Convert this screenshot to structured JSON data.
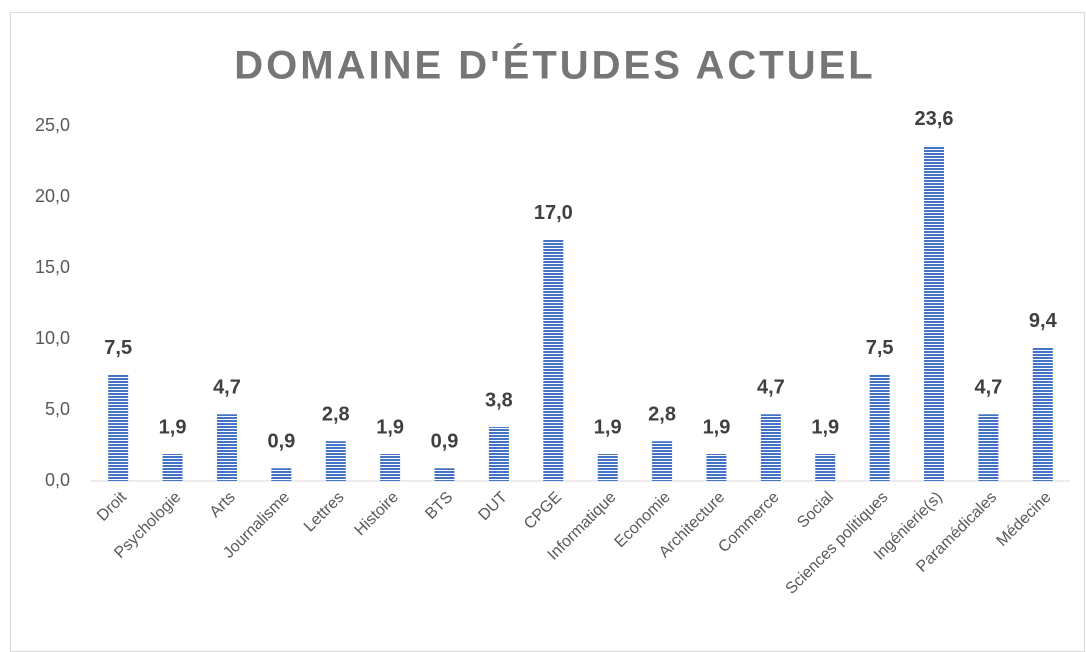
{
  "chart_data": {
    "type": "bar",
    "title": "DOMAINE D'ÉTUDES ACTUEL",
    "categories": [
      "Droit",
      "Psychologie",
      "Arts",
      "Journalisme",
      "Lettres",
      "Histoire",
      "BTS",
      "DUT",
      "CPGE",
      "Informatique",
      "Economie",
      "Architecture",
      "Commerce",
      "Social",
      "Sciences politiques",
      "Ingénierie(s)",
      "Paramédicales",
      "Médecine"
    ],
    "values": [
      7.5,
      1.9,
      4.7,
      0.9,
      2.8,
      1.9,
      0.9,
      3.8,
      17.0,
      1.9,
      2.8,
      1.9,
      4.7,
      1.9,
      7.5,
      23.6,
      4.7,
      9.4
    ],
    "value_labels": [
      "7,5",
      "1,9",
      "4,7",
      "0,9",
      "2,8",
      "1,9",
      "0,9",
      "3,8",
      "17,0",
      "1,9",
      "2,8",
      "1,9",
      "4,7",
      "1,9",
      "7,5",
      "23,6",
      "4,7",
      "9,4"
    ],
    "color": "#4472c4",
    "ylim": [
      0,
      25
    ],
    "yticks": [
      {
        "value": 0,
        "label": "0,0"
      },
      {
        "value": 5,
        "label": "5,0"
      },
      {
        "value": 10,
        "label": "10,0"
      },
      {
        "value": 15,
        "label": "15,0"
      },
      {
        "value": 20,
        "label": "20,0"
      },
      {
        "value": 25,
        "label": "25,0"
      }
    ],
    "grid": false
  }
}
